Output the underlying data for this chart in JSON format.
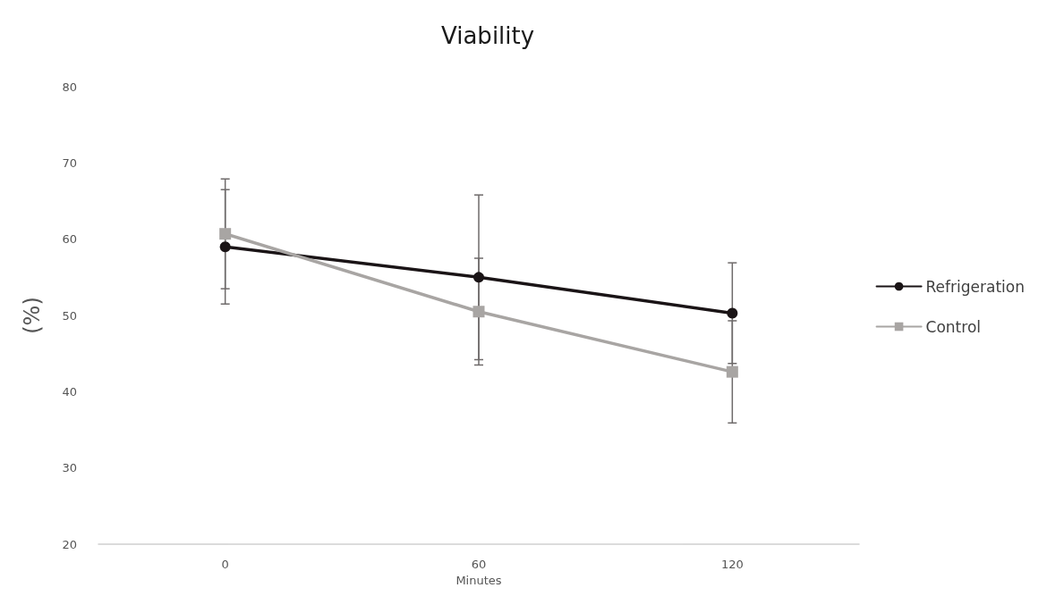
{
  "chart_data": {
    "type": "line",
    "title": "Viability",
    "xlabel": "Minutes",
    "ylabel": "(%)",
    "categories": [
      "0",
      "60",
      "120"
    ],
    "series": [
      {
        "name": "Refrigeration",
        "color": "#1a1416",
        "values": [
          59.0,
          55.0,
          50.3
        ],
        "errors": [
          7.5,
          10.8,
          6.6
        ],
        "marker": "circle"
      },
      {
        "name": "Control",
        "color": "#a8a5a3",
        "values": [
          60.7,
          50.5,
          42.6
        ],
        "errors": [
          7.2,
          7.0,
          6.7
        ],
        "marker": "square"
      }
    ],
    "ylim": [
      20,
      80
    ],
    "yticks": [
      20,
      30,
      40,
      50,
      60,
      70,
      80
    ],
    "grid": false,
    "legend": "right",
    "line_style": "solid"
  }
}
